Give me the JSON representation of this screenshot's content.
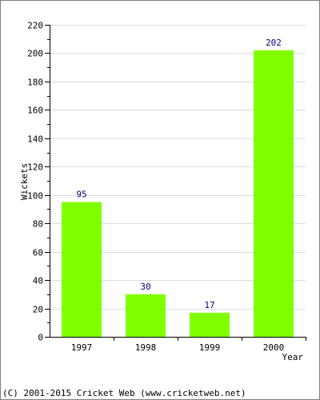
{
  "chart_data": {
    "type": "bar",
    "categories": [
      "1997",
      "1998",
      "1999",
      "2000"
    ],
    "values": [
      95,
      30,
      17,
      202
    ],
    "title": "",
    "xlabel": "Year",
    "ylabel": "Wickets",
    "ylim": [
      0,
      220
    ],
    "y_major_ticks": [
      0,
      20,
      40,
      60,
      80,
      100,
      120,
      140,
      160,
      180,
      200,
      220
    ],
    "data_labels": [
      "95",
      "30",
      "17",
      "202"
    ],
    "grid": true,
    "legend": "none",
    "colors": {
      "bar": "#80ff00",
      "data_label": "#000080",
      "grid": "#dcdcdc",
      "axis": "#000000",
      "border": "#7f7f7f"
    }
  },
  "footer": {
    "text": "(C) 2001-2015 Cricket Web (www.cricketweb.net)"
  }
}
